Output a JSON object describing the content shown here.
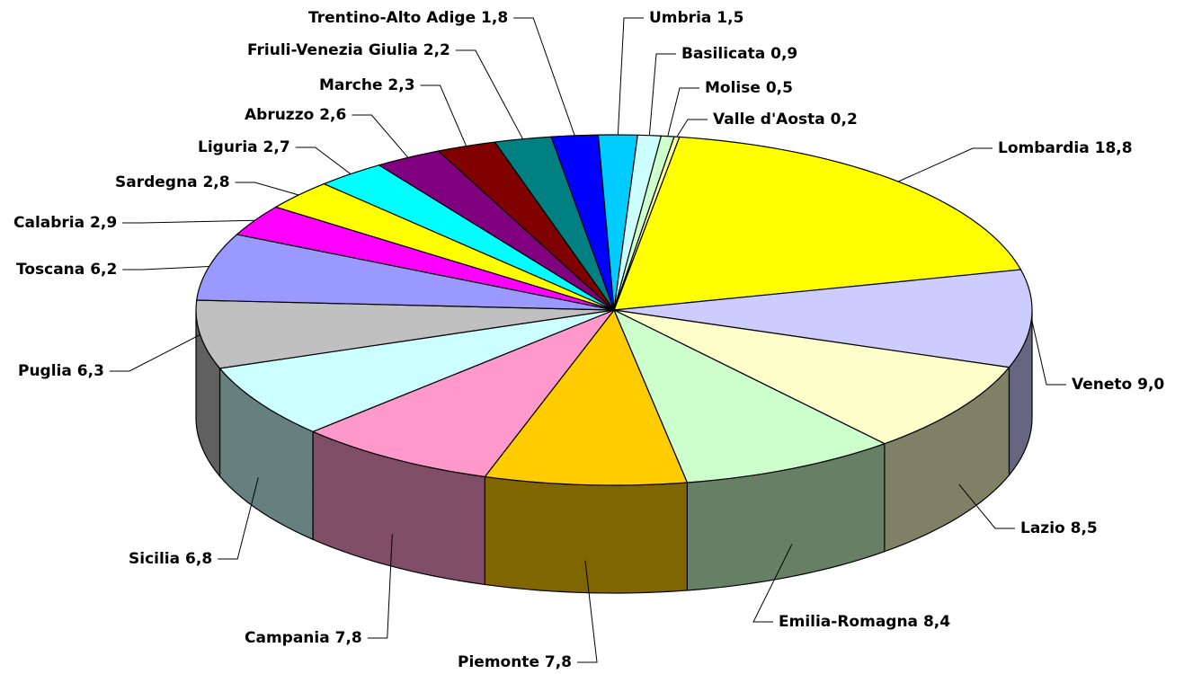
{
  "chart_data": {
    "type": "pie3d",
    "categories": [
      "Lombardia",
      "Veneto",
      "Lazio",
      "Emilia-Romagna",
      "Piemonte",
      "Campania",
      "Sicilia",
      "Puglia",
      "Toscana",
      "Calabria",
      "Sardegna",
      "Liguria",
      "Abruzzo",
      "Marche",
      "Friuli-Venezia Giulia",
      "Trentino-Alto Adige",
      "Umbria",
      "Basilicata",
      "Molise",
      "Valle d'Aosta"
    ],
    "values": [
      18.8,
      9.0,
      8.5,
      8.4,
      7.8,
      7.8,
      6.8,
      6.3,
      6.2,
      2.9,
      2.8,
      2.7,
      2.6,
      2.3,
      2.2,
      1.8,
      1.5,
      0.9,
      0.5,
      0.2
    ],
    "value_labels": [
      "18,8",
      "9,0",
      "8,5",
      "8,4",
      "7,8",
      "7,8",
      "6,8",
      "6,3",
      "6,2",
      "2,9",
      "2,8",
      "2,7",
      "2,6",
      "2,3",
      "2,2",
      "1,8",
      "1,5",
      "0,9",
      "0,5",
      "0,2"
    ],
    "colors": [
      "#ffff00",
      "#ccccff",
      "#ffffcc",
      "#ccffcc",
      "#ffcc00",
      "#ff99cc",
      "#ccffff",
      "#c0c0c0",
      "#9999ff",
      "#ff00ff",
      "#ffff00",
      "#00ffff",
      "#800080",
      "#800000",
      "#008080",
      "#0000ff",
      "#00ccff",
      "#ccffff",
      "#ccffcc",
      "#ffff99"
    ]
  }
}
